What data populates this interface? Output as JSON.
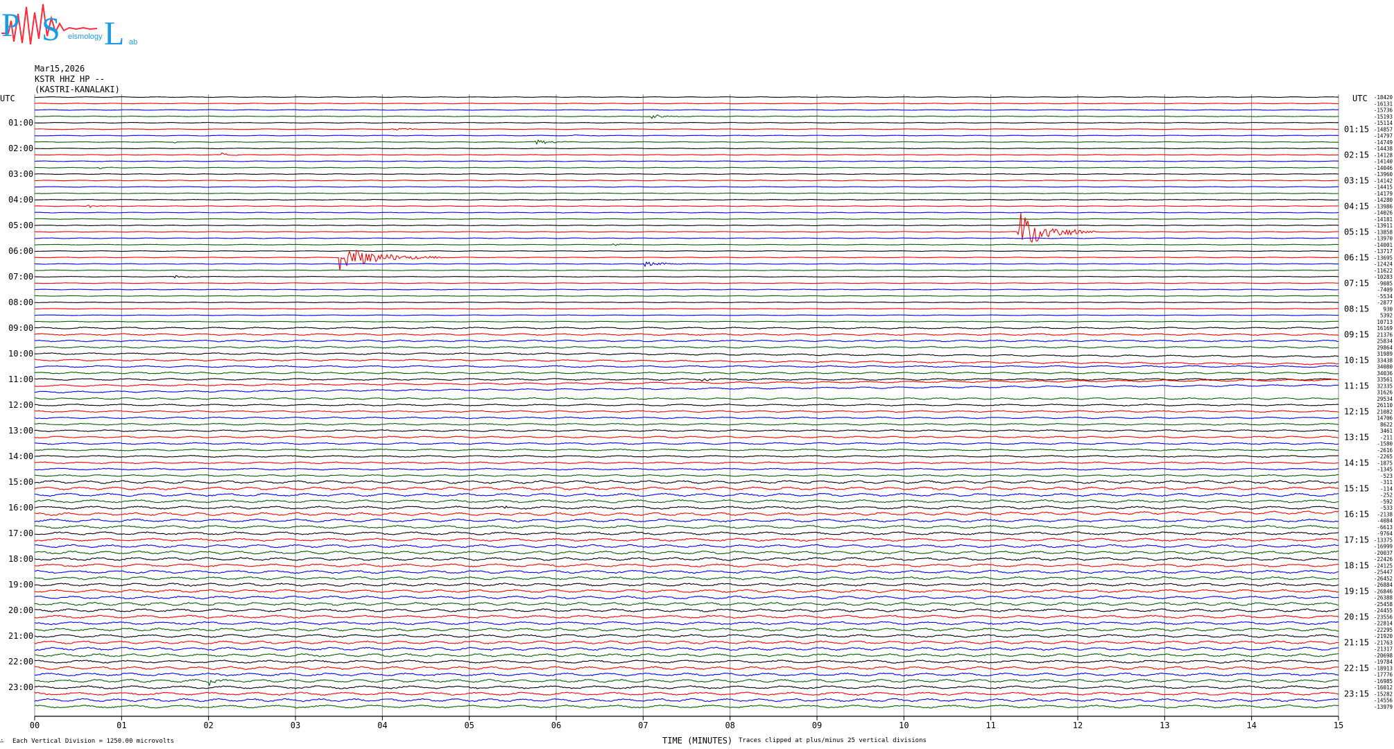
{
  "logo": {
    "big_letters": [
      "P",
      "S",
      "L"
    ],
    "small_text": [
      "eismology",
      "ab"
    ],
    "colors": {
      "big": "#1e9be0",
      "waveform": "#ff2a3a"
    }
  },
  "header": {
    "date": "Mar15,2026",
    "channel": "KSTR HHZ HP --",
    "location": "(KASTRI-KANALAKI)"
  },
  "left_axis_title": "UTC",
  "right_axis_title": "UTC",
  "x_axis_title": "TIME (MINUTES)",
  "footer": {
    "scale_note": "Each Vertical Division = 1250.00 microvolts",
    "clip_note": "Traces clipped at plus/minus 25 vertical divisions",
    "corner_mark": "∴"
  },
  "chart_data": {
    "type": "line",
    "title": "",
    "xlabel": "TIME (MINUTES)",
    "ylabel": "UTC",
    "xlim": [
      0,
      15
    ],
    "x_ticks": [
      "00",
      "01",
      "02",
      "03",
      "04",
      "05",
      "06",
      "07",
      "08",
      "09",
      "10",
      "11",
      "12",
      "13",
      "14",
      "15"
    ],
    "grid": true,
    "traces_per_hour": 4,
    "trace_colors": [
      "#000000",
      "#ff0000",
      "#0000ff",
      "#006000"
    ],
    "left_hour_labels": [
      "01:00",
      "02:00",
      "03:00",
      "04:00",
      "05:00",
      "06:00",
      "07:00",
      "08:00",
      "09:00",
      "10:00",
      "11:00",
      "12:00",
      "13:00",
      "14:00",
      "15:00",
      "16:00",
      "17:00",
      "18:00",
      "19:00",
      "20:00",
      "21:00",
      "22:00",
      "23:00"
    ],
    "right_hour_labels": [
      "01:15",
      "02:15",
      "03:15",
      "04:15",
      "05:15",
      "06:15",
      "07:15",
      "08:15",
      "09:15",
      "10:15",
      "11:15",
      "12:15",
      "13:15",
      "14:15",
      "15:15",
      "16:15",
      "17:15",
      "18:15",
      "19:15",
      "20:15",
      "21:15",
      "22:15",
      "23:15"
    ],
    "trace_offsets": [
      "-18420",
      "-16131",
      "-15736",
      "-15193",
      "-15114",
      "-14857",
      "-14797",
      "-14749",
      "-14438",
      "-14128",
      "-14140",
      "-14046",
      "-13960",
      "-14142",
      "-14415",
      "-14179",
      "-14280",
      "-13986",
      "-14026",
      "-14181",
      "-13911",
      "-13858",
      "-13970",
      "-14001",
      "-13717",
      "-13695",
      "-12424",
      "-11622",
      "-10283",
      "-9085",
      "-7409",
      "-5534",
      "-2877",
      "930",
      "5392",
      "10713",
      "16169",
      "21376",
      "25834",
      "29864",
      "31989",
      "33438",
      "34080",
      "34036",
      "33561",
      "32335",
      "31626",
      "29534",
      "26110",
      "21082",
      "14706",
      "8622",
      "3461",
      "-211",
      "-1580",
      "-2616",
      "-2265",
      "-1875",
      "-1345",
      "-523",
      "-311",
      "-114",
      "-252",
      "-592",
      "-533",
      "-2138",
      "-4084",
      "-6613",
      "-9764",
      "-13375",
      "-16999",
      "-20037",
      "-22426",
      "-24125",
      "-25447",
      "-26452",
      "-26884",
      "-26846",
      "-26388",
      "-25458",
      "-24455",
      "-23556",
      "-22814",
      "-22295",
      "-21920",
      "-21763",
      "-21317",
      "-20698",
      "-19784",
      "-18913",
      "-17776",
      "-16985",
      "-16012",
      "-15282",
      "-14556",
      "-13979"
    ],
    "events": [
      {
        "trace": 3,
        "minute": 7.1,
        "amplitude": 0.6,
        "duration": 0.45
      },
      {
        "trace": 5,
        "minute": 4.1,
        "amplitude": 0.5,
        "duration": 0.45
      },
      {
        "trace": 6,
        "minute": 6.2,
        "amplitude": 0.25,
        "duration": 0.3
      },
      {
        "trace": 7,
        "minute": 1.6,
        "amplitude": 0.4,
        "duration": 0.15
      },
      {
        "trace": 7,
        "minute": 5.75,
        "amplitude": 0.7,
        "duration": 0.5
      },
      {
        "trace": 9,
        "minute": 2.15,
        "amplitude": 0.5,
        "duration": 0.3
      },
      {
        "trace": 11,
        "minute": 0.75,
        "amplitude": 0.4,
        "duration": 0.2
      },
      {
        "trace": 17,
        "minute": 0.6,
        "amplitude": 0.5,
        "duration": 0.4
      },
      {
        "trace": 21,
        "minute": 11.3,
        "amplitude": 6.0,
        "duration": 0.9
      },
      {
        "trace": 23,
        "minute": 6.65,
        "amplitude": 0.4,
        "duration": 0.2
      },
      {
        "trace": 25,
        "minute": 3.5,
        "amplitude": 3.5,
        "duration": 1.2
      },
      {
        "trace": 26,
        "minute": 7.0,
        "amplitude": 0.7,
        "duration": 0.6
      },
      {
        "trace": 28,
        "minute": 1.6,
        "amplitude": 0.4,
        "duration": 0.4
      },
      {
        "trace": 44,
        "minute": 7.65,
        "amplitude": 0.6,
        "duration": 0.3
      },
      {
        "trace": 64,
        "minute": 5.4,
        "amplitude": 0.4,
        "duration": 0.3
      },
      {
        "trace": 91,
        "minute": 2.0,
        "amplitude": 0.9,
        "duration": 0.3
      }
    ],
    "drifting_traces": [
      {
        "trace": 40,
        "start_minute": 6.0,
        "drop": 0.45
      },
      {
        "trace": 41,
        "start_minute": 5.0,
        "drop": 0.6
      },
      {
        "trace": 45,
        "start_minute": 0.0,
        "drop": -0.9
      },
      {
        "trace": 46,
        "start_minute": 0.0,
        "drop": -1.1
      },
      {
        "trace": 65,
        "start_minute": 9.0,
        "drop": -0.25
      }
    ]
  }
}
